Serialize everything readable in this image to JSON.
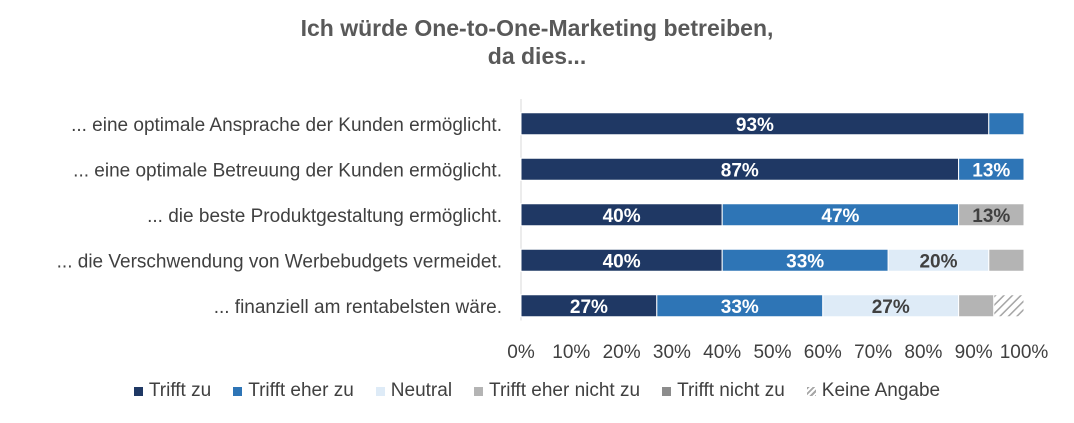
{
  "chart_data": {
    "type": "bar",
    "orientation": "horizontal",
    "stacked": true,
    "title_lines": [
      "Ich würde One-to-One-Marketing betreiben,",
      "da dies..."
    ],
    "categories": [
      "... eine optimale Ansprache der Kunden ermöglicht.",
      "... eine optimale Betreuung der Kunden ermöglicht.",
      "... die beste Produktgestaltung ermöglicht.",
      "... die Verschwendung von Werbebudgets vermeidet.",
      "... finanziell am rentabelsten wäre."
    ],
    "series": [
      {
        "name": "Trifft zu",
        "color": "#1f3864",
        "text_color": "#ffffff",
        "values": [
          93,
          87,
          40,
          40,
          27
        ],
        "labels": [
          "93%",
          "87%",
          "40%",
          "40%",
          "27%"
        ]
      },
      {
        "name": "Trifft eher zu",
        "color": "#2e75b6",
        "text_color": "#ffffff",
        "values": [
          7,
          13,
          47,
          33,
          33
        ],
        "labels": [
          "",
          "13%",
          "47%",
          "33%",
          "33%"
        ]
      },
      {
        "name": "Neutral",
        "color": "#deebf7",
        "text_color": "#404040",
        "values": [
          0,
          0,
          0,
          20,
          27
        ],
        "labels": [
          "",
          "",
          "",
          "20%",
          "27%"
        ]
      },
      {
        "name": "Trifft eher nicht zu",
        "color": "#b4b4b4",
        "text_color": "#404040",
        "values": [
          0,
          0,
          13,
          7,
          7
        ],
        "labels": [
          "",
          "",
          "13%",
          "",
          ""
        ]
      },
      {
        "name": "Trifft nicht zu",
        "color": "#8c8c8c",
        "text_color": "#404040",
        "values": [
          0,
          0,
          0,
          0,
          0
        ],
        "labels": [
          "",
          "",
          "",
          "",
          ""
        ]
      },
      {
        "name": "Keine Angabe",
        "color": "#a6a6a6",
        "pattern": "hatch",
        "text_color": "#404040",
        "values": [
          0,
          0,
          0,
          0,
          6
        ],
        "labels": [
          "",
          "",
          "",
          "",
          ""
        ]
      }
    ],
    "x_ticks": [
      "0%",
      "10%",
      "20%",
      "30%",
      "40%",
      "50%",
      "60%",
      "70%",
      "80%",
      "90%",
      "100%"
    ],
    "xlim": [
      0,
      100
    ],
    "grid": false,
    "legend_position": "bottom"
  }
}
